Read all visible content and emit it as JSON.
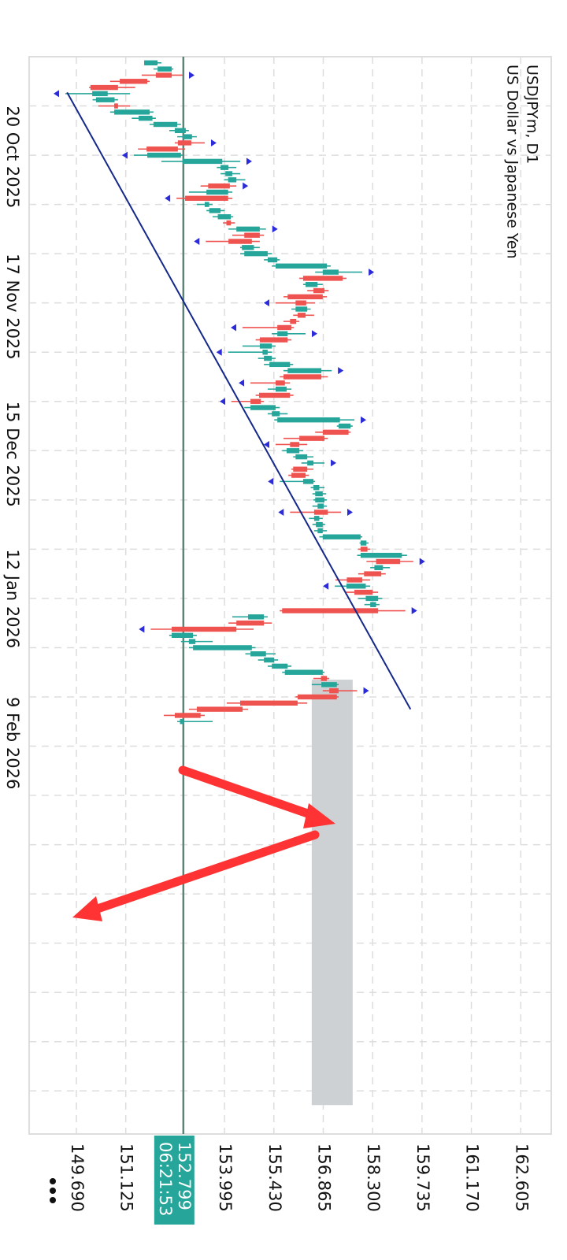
{
  "chart_data": {
    "type": "candlestick",
    "title": "USDJPYm, D1",
    "subtitle": "US Dollar vs Japanese Yen",
    "open": [
      151.66,
      152.05,
      152.46,
      151.75,
      150.9,
      150.15,
      150.26,
      150.9,
      150.79,
      151.5,
      151.93,
      152.55,
      152.8,
      153.03,
      152.64,
      151.75,
      152.78,
      153.88,
      154.02,
      154.1,
      154.15,
      153.47,
      154.1,
      153.42,
      153.55,
      153.8,
      154.18,
      154.34,
      155.02,
      154.79,
      154.5,
      154.57,
      155.25,
      155.48,
      156.85,
      157.43,
      156.35,
      156.9,
      156.85,
      156.37,
      156.06,
      156.35,
      156.08,
      155.94,
      155.53,
      155.83,
      155.02,
      155.1,
      155.14,
      155.3,
      155.83,
      156.81,
      155.75,
      155.48,
      155.9,
      155.05,
      154.75,
      155.37,
      155.53,
      157.31,
      157.6,
      156.9,
      156.17,
      155.8,
      156.06,
      156.4,
      156.4,
      156.35,
      156.28,
      156.58,
      156.63,
      156.63,
      156.7,
      157.0,
      156.6,
      156.65,
      156.7,
      156.85,
      157.95,
      158.15,
      157.95,
      159.1,
      158.35,
      158.55,
      158.0,
      157.54,
      158.3,
      158.1,
      158.23,
      158.46,
      154.68,
      155.14,
      154.34,
      152.46,
      152.96,
      153.08,
      154.75,
      155.14,
      155.37,
      155.75,
      156.97,
      156.81,
      157.31,
      157.26,
      156.12,
      154.52,
      153.3,
      152.7
    ],
    "high": [
      152.16,
      152.51,
      152.78,
      151.82,
      151.4,
      151.25,
      150.9,
      151.25,
      151.93,
      152.0,
      152.73,
      152.96,
      153.19,
      153.42,
      152.85,
      152.78,
      154.45,
      154.34,
      154.45,
      154.6,
      154.34,
      154.22,
      154.22,
      153.65,
      154.0,
      154.25,
      154.3,
      155.2,
      155.14,
      155.02,
      155.02,
      155.37,
      155.6,
      157.08,
      158.0,
      157.54,
      156.85,
      157.02,
      156.97,
      156.63,
      156.5,
      156.6,
      156.17,
      156.01,
      156.35,
      155.94,
      155.48,
      155.37,
      155.48,
      155.99,
      157.11,
      157.0,
      155.9,
      155.94,
      156.0,
      155.14,
      155.6,
      155.83,
      157.77,
      157.72,
      157.66,
      157.0,
      156.4,
      156.28,
      156.58,
      156.9,
      156.58,
      156.45,
      156.63,
      156.9,
      156.95,
      156.97,
      156.97,
      157.38,
      156.85,
      156.92,
      156.97,
      158.0,
      158.18,
      158.23,
      159.3,
      159.48,
      158.8,
      158.68,
      158.23,
      158.23,
      158.46,
      158.58,
      158.5,
      159.25,
      155.25,
      155.37,
      154.84,
      153.19,
      153.65,
      154.9,
      155.48,
      155.55,
      155.94,
      156.9,
      157.04,
      157.31,
      157.85,
      157.31,
      156.4,
      154.68,
      153.42,
      153.65
    ],
    "low": [
      151.66,
      151.93,
      151.59,
      150.67,
      150.06,
      149.37,
      150.16,
      150.33,
      150.67,
      151.3,
      151.82,
      152.39,
      152.62,
      152.55,
      151.48,
      151.36,
      152.16,
      153.77,
      153.88,
      153.98,
      153.3,
      152.96,
      152.6,
      153.19,
      153.47,
      153.65,
      153.95,
      154.11,
      154.22,
      153.45,
      154.45,
      154.45,
      155.14,
      155.37,
      156.63,
      156.17,
      156.28,
      156.4,
      155.71,
      155.48,
      155.94,
      155.99,
      155.71,
      154.52,
      155.37,
      154.9,
      154.52,
      154.1,
      154.97,
      155.14,
      155.71,
      155.6,
      154.75,
      155.25,
      154.9,
      154.2,
      154.57,
      155.25,
      155.44,
      157.26,
      156.63,
      155.71,
      155.48,
      155.67,
      155.99,
      156.23,
      155.94,
      155.85,
      155.6,
      156.5,
      156.55,
      156.58,
      156.55,
      155.9,
      156.45,
      156.55,
      156.6,
      156.75,
      157.92,
      157.88,
      157.85,
      158.12,
      158.23,
      157.88,
      157.22,
      157.2,
      157.5,
      157.88,
      158.06,
      155.6,
      154.22,
      154.11,
      151.85,
      152.39,
      152.73,
      152.96,
      154.6,
      154.97,
      155.25,
      155.67,
      156.58,
      156.53,
      156.85,
      156.06,
      154.06,
      152.96,
      152.23,
      152.62
    ],
    "close": [
      152.05,
      152.46,
      152.0,
      150.95,
      150.1,
      150.6,
      150.8,
      150.79,
      151.82,
      151.9,
      152.62,
      152.87,
      153.05,
      152.64,
      151.73,
      152.73,
      153.93,
      154.11,
      154.22,
      154.34,
      153.52,
      154.1,
      152.85,
      153.55,
      153.88,
      154.18,
      154.05,
      155.02,
      154.57,
      154.11,
      154.85,
      155.25,
      155.53,
      156.97,
      157.31,
      156.28,
      156.7,
      156.58,
      155.83,
      156.06,
      156.4,
      156.12,
      155.9,
      155.53,
      155.83,
      155.02,
      155.37,
      155.25,
      155.37,
      155.9,
      156.81,
      155.71,
      155.48,
      155.8,
      155.0,
      154.75,
      155.48,
      155.6,
      157.35,
      157.66,
      156.85,
      156.17,
      155.9,
      156.17,
      156.4,
      156.58,
      155.99,
      155.94,
      156.58,
      156.75,
      156.85,
      156.9,
      156.88,
      156.6,
      156.75,
      156.85,
      156.85,
      157.95,
      158.12,
      157.95,
      159.15,
      158.4,
      158.6,
      158.05,
      157.55,
      158.1,
      157.77,
      158.46,
      158.4,
      155.67,
      155.14,
      154.34,
      152.46,
      153.08,
      153.15,
      154.79,
      155.2,
      155.44,
      155.83,
      156.85,
      156.8,
      157.26,
      157.04,
      156.12,
      154.45,
      153.19,
      152.55,
      152.8
    ],
    "up_color": "#26a69a",
    "down_color": "#ef5350",
    "xlim": [
      -1,
      174
    ],
    "xticks": [
      {
        "value": 7,
        "label": "20 Oct 2025"
      },
      {
        "value": 31,
        "label": "17 Nov 2025"
      },
      {
        "value": 55,
        "label": "15 Dec 2025"
      },
      {
        "value": 79,
        "label": "12 Jan 2026"
      },
      {
        "value": 103,
        "label": "9 Feb 2026"
      }
    ],
    "xgrid": [
      15,
      23,
      39,
      47,
      63,
      71,
      87,
      95,
      111,
      119,
      127,
      135,
      143,
      151,
      159,
      167
    ],
    "ylim": [
      148.317,
      163.491
    ],
    "yticks": [
      {
        "value": 149.69,
        "label": "149.690"
      },
      151.125,
      153.995,
      {
        "value": 155.43,
        "label": "155.430"
      },
      156.865,
      {
        "value": 158.3,
        "label": "158.300"
      },
      159.735,
      {
        "value": 161.17,
        "label": "161.170"
      },
      162.605
    ],
    "grid": true,
    "current_price": {
      "value": 152.799,
      "countdown": "06:21:53",
      "color": "#26a69a",
      "line_color": "#5b8577"
    },
    "trendline": {
      "x": [
        4.8,
        105
      ],
      "y": [
        149.42,
        159.4
      ],
      "color": "#14288a"
    },
    "rectangle": {
      "x": [
        100.2,
        169.3
      ],
      "y": [
        156.53,
        157.72
      ],
      "color": "#cdd1d4"
    },
    "fractals_up": [
      2,
      13,
      16,
      20,
      27,
      34,
      44,
      50,
      58,
      65,
      73,
      81,
      89,
      102
    ],
    "fractals_down": [
      5,
      15,
      22,
      29,
      39,
      43,
      47,
      52,
      55,
      62,
      68,
      73,
      85,
      92
    ],
    "fractal_color": "#2b2bd9"
  }
}
